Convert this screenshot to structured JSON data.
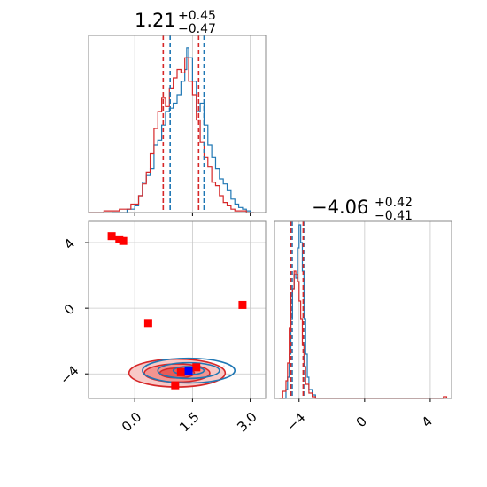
{
  "chart_data": {
    "type": "corner",
    "colors": {
      "blue": "#1f77b4",
      "red": "#d62728",
      "grid": "#c8c8c8",
      "marker_red": "#ff0000",
      "marker_blue": "#0000ff",
      "red_fill": "#f4a3a1"
    },
    "grid": true,
    "panels": {
      "hist_x": {
        "title": {
          "main": "1.21",
          "plus": "+0.45",
          "minus": "−0.47"
        },
        "xlim": [
          -1.2,
          3.4
        ],
        "quantiles_blue": [
          0.92,
          1.8
        ],
        "quantiles_red": [
          0.74,
          1.66
        ],
        "blue_bins": [
          [
            -0.6,
            0.0
          ],
          [
            -0.2,
            0.02
          ],
          [
            0.0,
            0.04
          ],
          [
            0.1,
            0.1
          ],
          [
            0.2,
            0.18
          ],
          [
            0.3,
            0.22
          ],
          [
            0.4,
            0.26
          ],
          [
            0.5,
            0.4
          ],
          [
            0.6,
            0.43
          ],
          [
            0.7,
            0.52
          ],
          [
            0.8,
            0.6
          ],
          [
            0.9,
            0.62
          ],
          [
            1.0,
            0.65
          ],
          [
            1.1,
            0.7
          ],
          [
            1.2,
            0.78
          ],
          [
            1.3,
            0.85
          ],
          [
            1.35,
            0.98
          ],
          [
            1.4,
            0.92
          ],
          [
            1.5,
            0.78
          ],
          [
            1.6,
            0.6
          ],
          [
            1.7,
            0.65
          ],
          [
            1.8,
            0.52
          ],
          [
            1.9,
            0.4
          ],
          [
            2.0,
            0.33
          ],
          [
            2.1,
            0.26
          ],
          [
            2.2,
            0.2
          ],
          [
            2.3,
            0.17
          ],
          [
            2.4,
            0.13
          ],
          [
            2.5,
            0.08
          ],
          [
            2.6,
            0.05
          ],
          [
            2.7,
            0.03
          ],
          [
            2.8,
            0.02
          ],
          [
            2.9,
            0.01
          ],
          [
            3.0,
            0.0
          ]
        ],
        "red_bins": [
          [
            -1.2,
            0.0
          ],
          [
            -0.8,
            0.01
          ],
          [
            -0.4,
            0.02
          ],
          [
            -0.1,
            0.05
          ],
          [
            0.1,
            0.1
          ],
          [
            0.2,
            0.17
          ],
          [
            0.3,
            0.24
          ],
          [
            0.4,
            0.35
          ],
          [
            0.5,
            0.5
          ],
          [
            0.6,
            0.6
          ],
          [
            0.7,
            0.68
          ],
          [
            0.8,
            0.63
          ],
          [
            0.9,
            0.74
          ],
          [
            1.0,
            0.8
          ],
          [
            1.1,
            0.85
          ],
          [
            1.2,
            0.83
          ],
          [
            1.3,
            0.92
          ],
          [
            1.4,
            0.78
          ],
          [
            1.5,
            0.7
          ],
          [
            1.6,
            0.55
          ],
          [
            1.7,
            0.42
          ],
          [
            1.8,
            0.33
          ],
          [
            1.9,
            0.27
          ],
          [
            2.0,
            0.18
          ],
          [
            2.1,
            0.16
          ],
          [
            2.2,
            0.1
          ],
          [
            2.3,
            0.06
          ],
          [
            2.4,
            0.04
          ],
          [
            2.5,
            0.02
          ],
          [
            2.6,
            0.01
          ],
          [
            2.9,
            0.0
          ],
          [
            3.1,
            0.0
          ]
        ]
      },
      "scatter_2d": {
        "xlim": [
          -1.2,
          3.4
        ],
        "ylim": [
          -5.5,
          5.3
        ],
        "xticks": [
          0.0,
          1.5,
          3.0
        ],
        "xtick_labels": [
          "0.0",
          "1.5",
          "3.0"
        ],
        "yticks": [
          4,
          0,
          -4
        ],
        "ytick_labels": [
          "4",
          "0",
          "−4"
        ],
        "red_squares": [
          [
            -0.6,
            4.4
          ],
          [
            -0.4,
            4.2
          ],
          [
            -0.3,
            4.1
          ],
          [
            0.35,
            -0.9
          ],
          [
            2.8,
            0.2
          ],
          [
            1.2,
            -3.9
          ],
          [
            1.6,
            -3.6
          ],
          [
            1.05,
            -4.7
          ]
        ],
        "blue_squares": [
          [
            1.4,
            -3.8
          ]
        ],
        "red_contours": [
          {
            "cx": 1.1,
            "cy": -3.95,
            "rx": 1.25,
            "ry": 0.85,
            "fill": true
          },
          {
            "cx": 1.1,
            "cy": -3.95,
            "rx": 0.85,
            "ry": 0.55,
            "fill": true
          },
          {
            "cx": 1.1,
            "cy": -3.95,
            "rx": 0.45,
            "ry": 0.3,
            "fill": true
          }
        ],
        "blue_contours": [
          {
            "cx": 1.4,
            "cy": -3.8,
            "rx": 1.2,
            "ry": 0.75
          },
          {
            "cx": 1.4,
            "cy": -3.8,
            "rx": 0.8,
            "ry": 0.48
          },
          {
            "cx": 1.4,
            "cy": -3.8,
            "rx": 0.4,
            "ry": 0.25
          }
        ]
      },
      "hist_y": {
        "title": {
          "main": "−4.06",
          "plus": "+0.42",
          "minus": "−0.41"
        },
        "xlim": [
          -5.5,
          5.3
        ],
        "xticks": [
          -4,
          0,
          4
        ],
        "xtick_labels": [
          "−4",
          "0",
          "4"
        ],
        "quantiles_blue": [
          -4.42,
          -3.66
        ],
        "quantiles_red": [
          -4.5,
          -3.75
        ],
        "blue_bins": [
          [
            -5.0,
            0.0
          ],
          [
            -4.8,
            0.05
          ],
          [
            -4.7,
            0.12
          ],
          [
            -4.6,
            0.25
          ],
          [
            -4.5,
            0.45
          ],
          [
            -4.4,
            0.62
          ],
          [
            -4.3,
            0.7
          ],
          [
            -4.2,
            0.68
          ],
          [
            -4.1,
            0.85
          ],
          [
            -4.0,
            0.98
          ],
          [
            -3.9,
            0.88
          ],
          [
            -3.8,
            0.72
          ],
          [
            -3.7,
            0.45
          ],
          [
            -3.6,
            0.25
          ],
          [
            -3.5,
            0.12
          ],
          [
            -3.4,
            0.05
          ],
          [
            -3.2,
            0.02
          ],
          [
            -3.0,
            0.0
          ]
        ],
        "red_bins": [
          [
            -5.2,
            0.0
          ],
          [
            -5.0,
            0.04
          ],
          [
            -4.8,
            0.1
          ],
          [
            -4.7,
            0.2
          ],
          [
            -4.6,
            0.4
          ],
          [
            -4.5,
            0.58
          ],
          [
            -4.4,
            0.62
          ],
          [
            -4.3,
            0.72
          ],
          [
            -4.2,
            0.7
          ],
          [
            -4.1,
            0.66
          ],
          [
            -4.0,
            0.55
          ],
          [
            -3.9,
            0.45
          ],
          [
            -3.8,
            0.3
          ],
          [
            -3.7,
            0.18
          ],
          [
            -3.6,
            0.08
          ],
          [
            -3.4,
            0.03
          ],
          [
            -3.2,
            0.01
          ],
          [
            -3.0,
            0.0
          ],
          [
            4.8,
            0.01
          ],
          [
            5.0,
            0.0
          ]
        ]
      }
    }
  }
}
